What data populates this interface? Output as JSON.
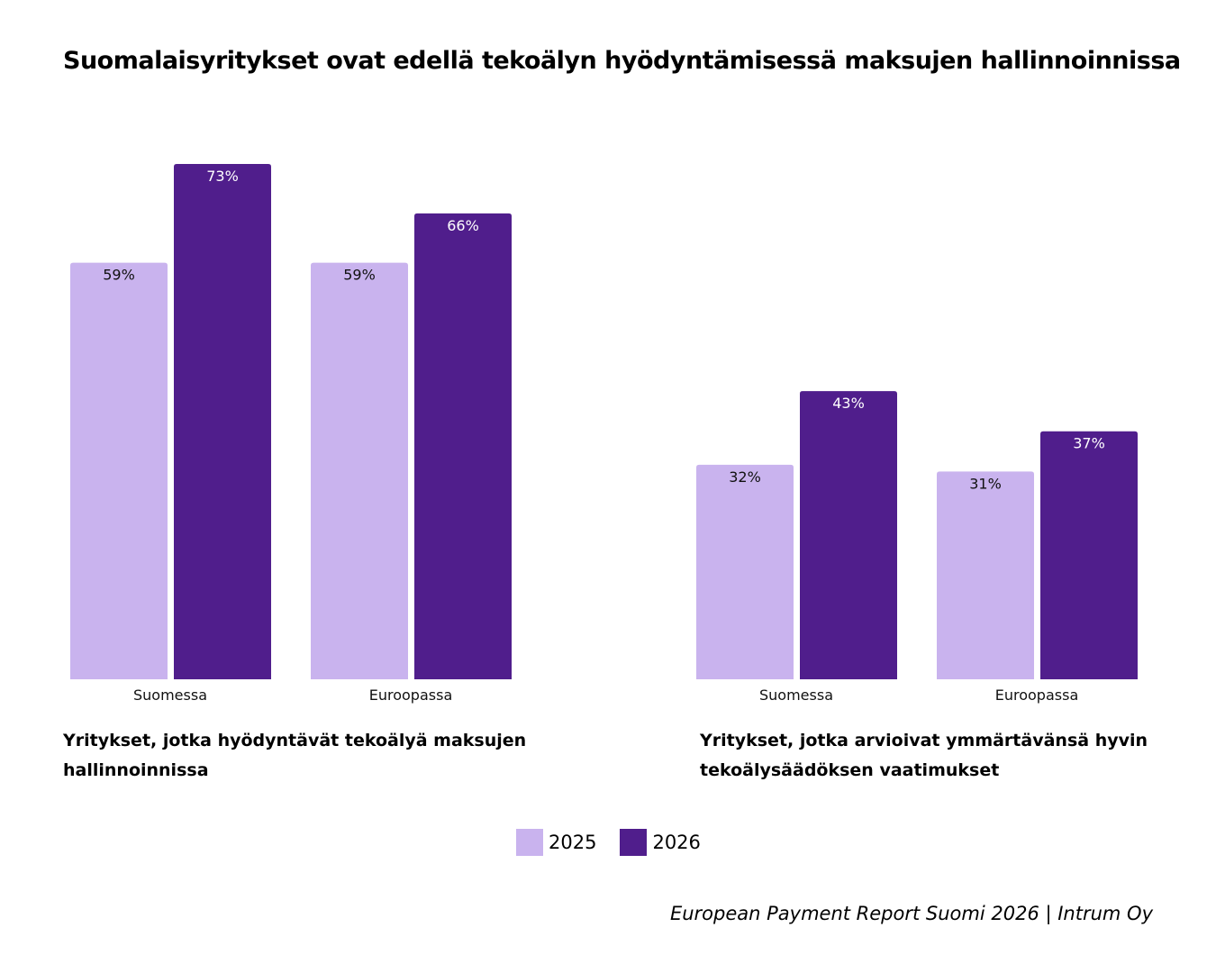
{
  "title": "Suomalaisyritykset ovat edellä tekoälyn hyödyntämisessä maksujen hallinnoinnissa",
  "source": "European Payment Report Suomi 2026 | Intrum Oy",
  "colors": {
    "2025": "#C9B3EE",
    "2026": "#501E8C"
  },
  "chart_data": [
    {
      "type": "bar",
      "title": "Yritykset, jotka hyödyntävät tekoälyä maksujen hallinnoinnissa",
      "categories": [
        "Suomessa",
        "Euroopassa"
      ],
      "series": [
        {
          "name": "2025",
          "values": [
            59,
            59
          ]
        },
        {
          "name": "2026",
          "values": [
            73,
            66
          ]
        }
      ],
      "value_labels": [
        [
          "59%",
          "59%"
        ],
        [
          "73%",
          "66%"
        ]
      ],
      "legend": "bottom-center",
      "grid": false
    },
    {
      "type": "bar",
      "title": "Yritykset, jotka arvioivat ymmärtävänsä hyvin tekoälysäädöksen vaatimukset",
      "categories": [
        "Suomessa",
        "Euroopassa"
      ],
      "series": [
        {
          "name": "2025",
          "values": [
            32,
            31
          ]
        },
        {
          "name": "2026",
          "values": [
            43,
            37
          ]
        }
      ],
      "value_labels": [
        [
          "32%",
          "31%"
        ],
        [
          "43%",
          "37%"
        ]
      ],
      "legend": "bottom-center",
      "grid": false
    }
  ]
}
